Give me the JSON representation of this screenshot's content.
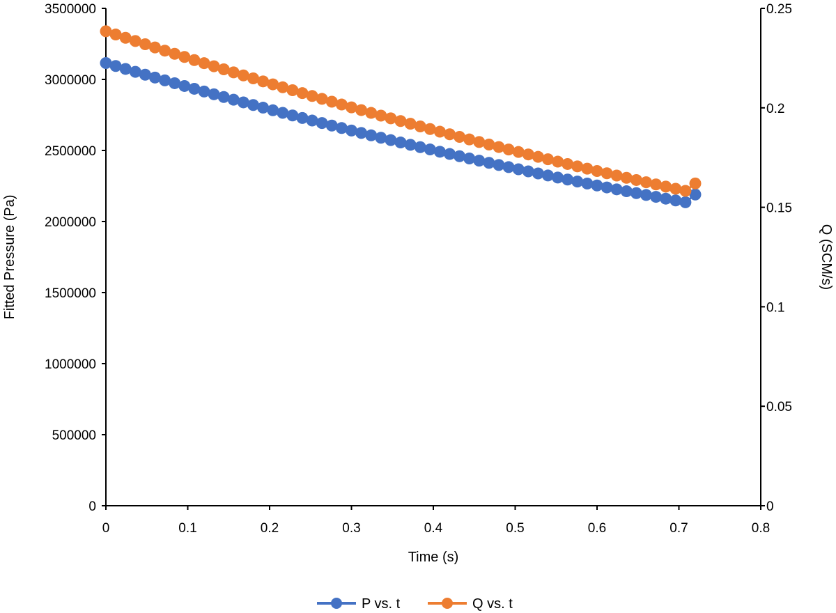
{
  "chart_data": {
    "type": "scatter",
    "title": "",
    "xlabel": "Time (s)",
    "ylabel_left": "Fitted Pressure (Pa)",
    "ylabel_right": "Q (SCM/s)",
    "xlim": [
      0,
      0.8
    ],
    "ylim_left": [
      0,
      3500000
    ],
    "ylim_right": [
      0,
      0.25
    ],
    "x_ticks": [
      0,
      0.1,
      0.2,
      0.3,
      0.4,
      0.5,
      0.6,
      0.7,
      0.8
    ],
    "x_tick_labels": [
      "0",
      "0.1",
      "0.2",
      "0.3",
      "0.4",
      "0.5",
      "0.6",
      "0.7",
      "0.8"
    ],
    "y_left_ticks": [
      0,
      500000,
      1000000,
      1500000,
      2000000,
      2500000,
      3000000,
      3500000
    ],
    "y_left_tick_labels": [
      "0",
      "500000",
      "1000000",
      "1500000",
      "2000000",
      "2500000",
      "3000000",
      "3500000"
    ],
    "y_right_ticks": [
      0,
      0.05,
      0.1,
      0.15,
      0.2,
      0.25
    ],
    "y_right_tick_labels": [
      "0",
      "0.05",
      "0.1",
      "0.15",
      "0.2",
      "0.25"
    ],
    "grid": false,
    "legend_position": "bottom",
    "x": [
      0,
      0.012,
      0.024,
      0.036,
      0.048,
      0.06,
      0.072,
      0.084,
      0.096,
      0.108,
      0.12,
      0.132,
      0.144,
      0.156,
      0.168,
      0.18,
      0.192,
      0.204,
      0.216,
      0.228,
      0.24,
      0.252,
      0.264,
      0.276,
      0.288,
      0.3,
      0.312,
      0.324,
      0.336,
      0.348,
      0.36,
      0.372,
      0.384,
      0.396,
      0.408,
      0.42,
      0.432,
      0.444,
      0.456,
      0.468,
      0.48,
      0.492,
      0.504,
      0.516,
      0.528,
      0.54,
      0.552,
      0.564,
      0.576,
      0.588,
      0.6,
      0.612,
      0.624,
      0.636,
      0.648,
      0.66,
      0.672,
      0.684,
      0.696,
      0.708,
      0.72
    ],
    "series": [
      {
        "name": "P vs. t",
        "axis": "left",
        "color": "#4472C4",
        "values": [
          3115000,
          3094340,
          3073820,
          3053440,
          3033200,
          3013100,
          2993140,
          2973320,
          2953640,
          2934100,
          2914700,
          2895440,
          2876320,
          2857340,
          2838500,
          2819800,
          2801240,
          2782820,
          2764540,
          2746400,
          2728400,
          2710540,
          2692820,
          2675240,
          2657800,
          2640500,
          2623340,
          2606320,
          2589440,
          2572700,
          2556100,
          2539640,
          2523320,
          2507140,
          2491100,
          2475200,
          2459440,
          2443820,
          2428340,
          2413000,
          2397800,
          2382740,
          2367820,
          2353040,
          2338400,
          2323900,
          2309540,
          2295320,
          2281240,
          2267300,
          2253500,
          2239840,
          2226320,
          2212940,
          2199700,
          2186600,
          2173640,
          2160820,
          2148140,
          2135600,
          2190000
        ]
      },
      {
        "name": "Q vs. t",
        "axis": "right",
        "color": "#ED7D31",
        "values": [
          0.2385,
          0.23685,
          0.23521,
          0.23358,
          0.23196,
          0.23035,
          0.22875,
          0.22716,
          0.22558,
          0.22401,
          0.22245,
          0.2209,
          0.21936,
          0.21783,
          0.21631,
          0.2148,
          0.2133,
          0.21181,
          0.21033,
          0.20886,
          0.2074,
          0.20595,
          0.20451,
          0.20308,
          0.20166,
          0.20025,
          0.19885,
          0.19746,
          0.19608,
          0.19471,
          0.19335,
          0.192,
          0.19066,
          0.18933,
          0.18801,
          0.1867,
          0.1854,
          0.18411,
          0.18283,
          0.18156,
          0.1803,
          0.17905,
          0.17781,
          0.17658,
          0.17536,
          0.17415,
          0.17295,
          0.17176,
          0.17058,
          0.16941,
          0.16825,
          0.1671,
          0.16596,
          0.16483,
          0.16371,
          0.1626,
          0.1615,
          0.16041,
          0.15933,
          0.15826,
          0.162
        ]
      }
    ]
  }
}
